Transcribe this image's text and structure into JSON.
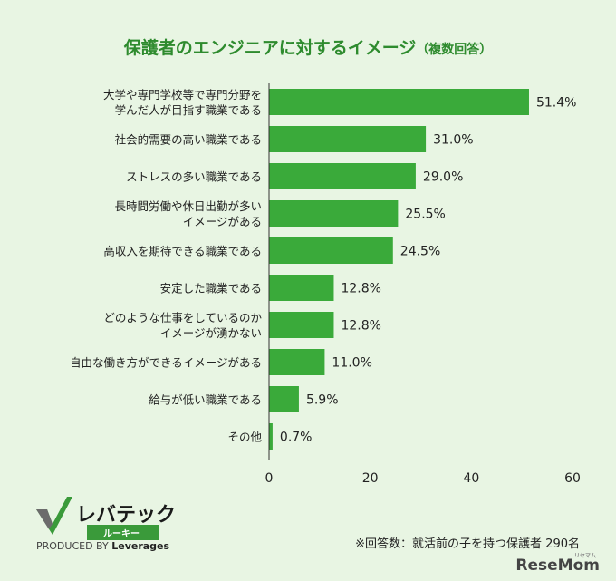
{
  "title": "保護者のエンジニアに対するイメージ",
  "title_suffix": "（複数回答）",
  "note": "※回答数：就活前の子を持つ保護者 290名",
  "logo": {
    "name": "レバテック",
    "sub": "ルーキー",
    "produced_by": "PRODUCED BY",
    "company": "Leverages",
    "icon": "checkmark-logo-icon"
  },
  "watermark": "ReseMom",
  "watermark_sub": "リセマム",
  "colors": {
    "bar": "#3aaa3a",
    "background": "#e8f5e3",
    "title": "#2e8b2e"
  },
  "chart_data": {
    "type": "bar",
    "orientation": "horizontal",
    "categories": [
      [
        "大学や専門学校等で専門分野を",
        "学んだ人が目指す職業である"
      ],
      [
        "社会的需要の高い職業である"
      ],
      [
        "ストレスの多い職業である"
      ],
      [
        "長時間労働や休日出勤が多い",
        "イメージがある"
      ],
      [
        "高収入を期待できる職業である"
      ],
      [
        "安定した職業である"
      ],
      [
        "どのような仕事をしているのか",
        "イメージが湧かない"
      ],
      [
        "自由な働き方ができるイメージがある"
      ],
      [
        "給与が低い職業である"
      ],
      [
        "その他"
      ]
    ],
    "values": [
      51.4,
      31.0,
      29.0,
      25.5,
      24.5,
      12.8,
      12.8,
      11.0,
      5.9,
      0.7
    ],
    "value_labels": [
      "51.4%",
      "31.0%",
      "29.0%",
      "25.5%",
      "24.5%",
      "12.8%",
      "12.8%",
      "11.0%",
      "5.9%",
      "0.7%"
    ],
    "xlim": [
      0,
      60
    ],
    "xticks": [
      0,
      20,
      40,
      60
    ],
    "xtick_labels": [
      "0",
      "20",
      "40",
      "60"
    ],
    "grid": false
  }
}
